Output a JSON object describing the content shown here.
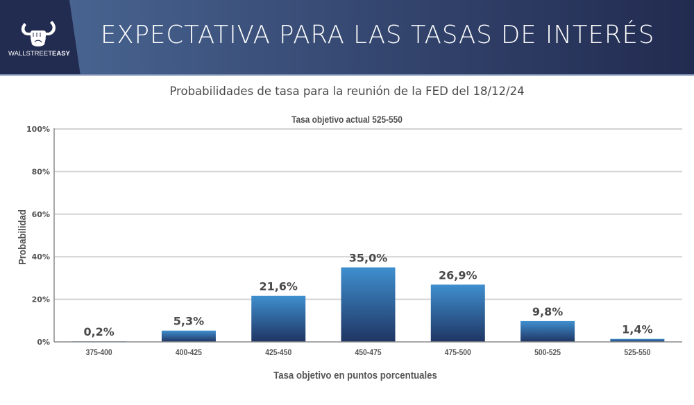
{
  "header": {
    "title": "EXPECTATIVA PARA LAS TASAS DE INTERÉS",
    "brand_light": "WALLSTREET",
    "brand_bold": "EASY",
    "logo_icon": "bull-horns-fist-icon",
    "colors": {
      "dark_navy": "#222b50",
      "mid_blue": "#4a6591",
      "title_text": "#ffffff"
    }
  },
  "subtitle": "Probabilidades de tasa para la reunión de la FED del 18/12/24",
  "chart_data": {
    "type": "bar",
    "title": "Tasa objetivo actual 525-550",
    "xlabel": "Tasa objetivo en puntos porcentuales",
    "ylabel": "Probabilidad",
    "categories": [
      "375-400",
      "400-425",
      "425-450",
      "450-475",
      "475-500",
      "500-525",
      "525-550"
    ],
    "values": [
      0.2,
      5.3,
      21.6,
      35.0,
      26.9,
      9.8,
      1.4
    ],
    "data_labels": [
      "0,2%",
      "5,3%",
      "21,6%",
      "35,0%",
      "26,9%",
      "9,8%",
      "1,4%"
    ],
    "ylim": [
      0,
      100
    ],
    "yticks": [
      0,
      20,
      40,
      60,
      80,
      100
    ],
    "ytick_labels": [
      "0%",
      "20%",
      "40%",
      "60%",
      "80%",
      "100%"
    ],
    "grid": true,
    "legend": "none",
    "colors": {
      "bar_top": "#3f8fcf",
      "bar_bottom": "#1f3563",
      "grid": "#d2d2d2",
      "axis": "#8a8a8a"
    }
  }
}
